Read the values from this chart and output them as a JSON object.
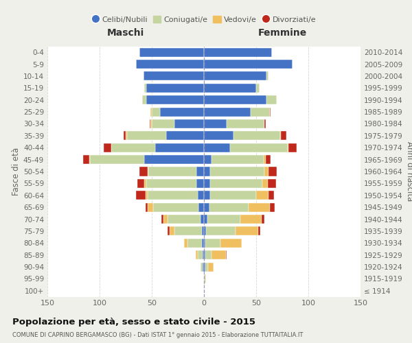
{
  "age_groups": [
    "100+",
    "95-99",
    "90-94",
    "85-89",
    "80-84",
    "75-79",
    "70-74",
    "65-69",
    "60-64",
    "55-59",
    "50-54",
    "45-49",
    "40-44",
    "35-39",
    "30-34",
    "25-29",
    "20-24",
    "15-19",
    "10-14",
    "5-9",
    "0-4"
  ],
  "birth_years": [
    "≤ 1914",
    "1915-1919",
    "1920-1924",
    "1925-1929",
    "1930-1934",
    "1935-1939",
    "1940-1944",
    "1945-1949",
    "1950-1954",
    "1955-1959",
    "1960-1964",
    "1965-1969",
    "1970-1974",
    "1975-1979",
    "1980-1984",
    "1985-1989",
    "1990-1994",
    "1995-1999",
    "2000-2004",
    "2005-2009",
    "2010-2014"
  ],
  "male_celibi": [
    0,
    0,
    1,
    1,
    2,
    2,
    3,
    5,
    6,
    7,
    7,
    57,
    47,
    36,
    28,
    42,
    55,
    55,
    58,
    65,
    62
  ],
  "male_coniugati": [
    0,
    0,
    2,
    5,
    14,
    26,
    32,
    44,
    48,
    48,
    46,
    52,
    42,
    38,
    22,
    8,
    4,
    2,
    0,
    0,
    0
  ],
  "male_vedovi": [
    0,
    0,
    0,
    2,
    3,
    5,
    4,
    5,
    2,
    2,
    1,
    1,
    0,
    1,
    1,
    1,
    0,
    0,
    0,
    0,
    0
  ],
  "male_divorziati": [
    0,
    0,
    0,
    0,
    0,
    2,
    2,
    2,
    9,
    7,
    8,
    6,
    7,
    2,
    1,
    0,
    0,
    0,
    0,
    0,
    0
  ],
  "female_nubili": [
    0,
    0,
    1,
    1,
    1,
    2,
    3,
    5,
    6,
    6,
    6,
    7,
    25,
    28,
    22,
    45,
    60,
    50,
    60,
    85,
    65
  ],
  "female_coniugate": [
    0,
    1,
    3,
    6,
    15,
    28,
    32,
    38,
    44,
    50,
    52,
    50,
    55,
    45,
    36,
    18,
    10,
    3,
    2,
    0,
    0
  ],
  "female_vedove": [
    0,
    1,
    5,
    14,
    20,
    22,
    20,
    20,
    12,
    5,
    4,
    2,
    1,
    1,
    0,
    0,
    0,
    0,
    0,
    0,
    0
  ],
  "female_divorziate": [
    0,
    0,
    0,
    1,
    0,
    2,
    3,
    5,
    5,
    8,
    8,
    5,
    8,
    5,
    1,
    1,
    0,
    0,
    0,
    0,
    0
  ],
  "colors": {
    "celibi": "#4472c4",
    "coniugati": "#c5d5a0",
    "vedovi": "#f0c060",
    "divorziati": "#c0281c"
  },
  "xlim": 150,
  "title": "Popolazione per età, sesso e stato civile - 2015",
  "subtitle": "COMUNE DI CAPRINO BERGAMASCO (BG) - Dati ISTAT 1° gennaio 2015 - Elaborazione TUTTAITALIA.IT",
  "ylabel_left": "Fasce di età",
  "ylabel_right": "Anni di nascita",
  "xlabel_male": "Maschi",
  "xlabel_female": "Femmine",
  "bg_color": "#f0f0ea",
  "plot_bg_color": "#ffffff",
  "legend_labels": [
    "Celibi/Nubili",
    "Coniugati/e",
    "Vedovi/e",
    "Divorziati/e"
  ]
}
